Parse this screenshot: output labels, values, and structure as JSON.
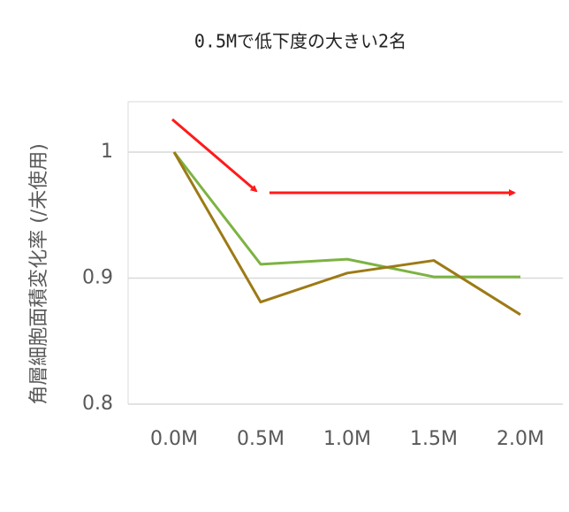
{
  "chart_data": {
    "type": "line",
    "title": "0.5Mで低下度の大きい2名",
    "y_label": "角層細胞面積変化率 (/未使用)",
    "categories": [
      "0.0M",
      "0.5M",
      "1.0M",
      "1.5M",
      "2.0M"
    ],
    "series": [
      {
        "color": "#7cb342",
        "values": [
          1,
          0.911,
          0.915,
          0.901,
          0.901
        ]
      },
      {
        "color": "#9c7a16",
        "values": [
          1,
          0.881,
          0.904,
          0.914,
          0.871
        ]
      }
    ],
    "ylim": [
      0.8,
      1.04
    ],
    "yticks": [
      0.8,
      0.9,
      1
    ],
    "grid": true
  }
}
